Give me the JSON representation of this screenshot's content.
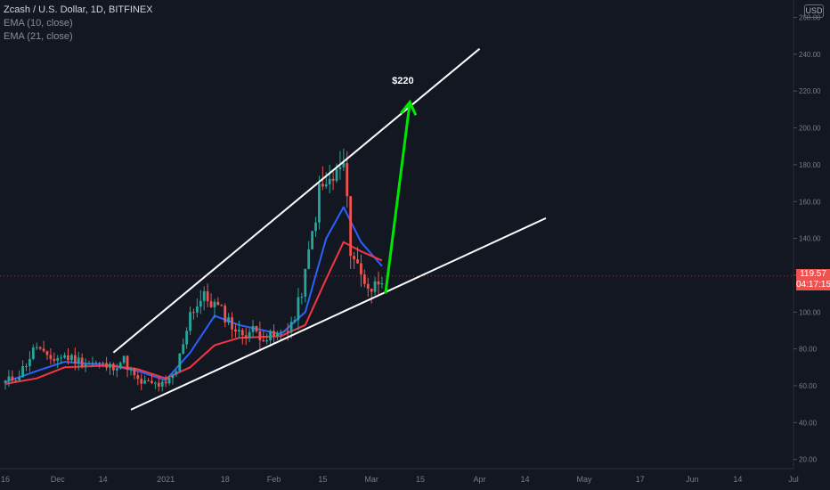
{
  "header": {
    "symbol_line": "Zcash / U.S. Dollar, 1D, BITFINEX",
    "ema_fast_label": "EMA (10, close)",
    "ema_slow_label": "EMA (21, close)",
    "currency_badge": "USD"
  },
  "last_price": {
    "price": "119.57",
    "countdown": "04:17:15"
  },
  "colors": {
    "background": "#131722",
    "up_candle": "#26a69a",
    "down_candle": "#ef5350",
    "ema_fast": "#2962ff",
    "ema_slow": "#f23645",
    "trendline": "#ffffff",
    "target_arrow": "#00e600",
    "price_tag": "#ef5350"
  },
  "chart_data": {
    "type": "candlestick",
    "title": "Zcash / U.S. Dollar, 1D, BITFINEX",
    "y_axis": {
      "ylim": [
        15,
        268
      ],
      "ticks": [
        "260.00",
        "240.00",
        "220.00",
        "200.00",
        "180.00",
        "160.00",
        "140.00",
        "120.00",
        "100.00",
        "80.00",
        "60.00",
        "40.00",
        "20.00"
      ],
      "position": "right",
      "unit": "USD"
    },
    "x_axis": {
      "xlim": [
        "2020-11-16",
        "2021-06-30"
      ],
      "ticks": [
        {
          "date": "2020-11-16",
          "label": "16"
        },
        {
          "date": "2020-12-01",
          "label": "Dec"
        },
        {
          "date": "2020-12-14",
          "label": "14"
        },
        {
          "date": "2021-01-01",
          "label": "2021"
        },
        {
          "date": "2021-01-18",
          "label": "18"
        },
        {
          "date": "2021-02-01",
          "label": "Feb"
        },
        {
          "date": "2021-02-15",
          "label": "15"
        },
        {
          "date": "2021-03-01",
          "label": "Mar"
        },
        {
          "date": "2021-03-15",
          "label": "15"
        },
        {
          "date": "2021-04-01",
          "label": "Apr"
        },
        {
          "date": "2021-04-14",
          "label": "14"
        },
        {
          "date": "2021-05-01",
          "label": "May"
        },
        {
          "date": "2021-05-17",
          "label": "17"
        },
        {
          "date": "2021-06-01",
          "label": "Jun"
        },
        {
          "date": "2021-06-14",
          "label": "14"
        },
        {
          "date": "2021-06-30",
          "label": "Jul"
        }
      ]
    },
    "grid": false,
    "closes": [
      {
        "date": "2020-11-16",
        "value": 62
      },
      {
        "date": "2020-11-20",
        "value": 66
      },
      {
        "date": "2020-11-25",
        "value": 82
      },
      {
        "date": "2020-11-28",
        "value": 74
      },
      {
        "date": "2020-12-03",
        "value": 76
      },
      {
        "date": "2020-12-08",
        "value": 73
      },
      {
        "date": "2020-12-12",
        "value": 72
      },
      {
        "date": "2020-12-16",
        "value": 70
      },
      {
        "date": "2020-12-20",
        "value": 74
      },
      {
        "date": "2020-12-24",
        "value": 62
      },
      {
        "date": "2020-12-28",
        "value": 61
      },
      {
        "date": "2021-01-01",
        "value": 60
      },
      {
        "date": "2021-01-04",
        "value": 68
      },
      {
        "date": "2021-01-08",
        "value": 100
      },
      {
        "date": "2021-01-12",
        "value": 108
      },
      {
        "date": "2021-01-15",
        "value": 104
      },
      {
        "date": "2021-01-18",
        "value": 98
      },
      {
        "date": "2021-01-22",
        "value": 88
      },
      {
        "date": "2021-01-26",
        "value": 90
      },
      {
        "date": "2021-01-30",
        "value": 86
      },
      {
        "date": "2021-02-03",
        "value": 88
      },
      {
        "date": "2021-02-07",
        "value": 96
      },
      {
        "date": "2021-02-10",
        "value": 120
      },
      {
        "date": "2021-02-14",
        "value": 165
      },
      {
        "date": "2021-02-18",
        "value": 172
      },
      {
        "date": "2021-02-21",
        "value": 180
      },
      {
        "date": "2021-02-23",
        "value": 135
      },
      {
        "date": "2021-02-26",
        "value": 120
      },
      {
        "date": "2021-03-01",
        "value": 112
      },
      {
        "date": "2021-03-04",
        "value": 120
      }
    ],
    "series": [
      {
        "name": "EMA (10, close)",
        "points": [
          {
            "date": "2020-11-16",
            "value": 62
          },
          {
            "date": "2020-11-25",
            "value": 68
          },
          {
            "date": "2020-12-03",
            "value": 73
          },
          {
            "date": "2020-12-16",
            "value": 71
          },
          {
            "date": "2020-12-24",
            "value": 68
          },
          {
            "date": "2021-01-01",
            "value": 63
          },
          {
            "date": "2021-01-08",
            "value": 78
          },
          {
            "date": "2021-01-15",
            "value": 98
          },
          {
            "date": "2021-01-22",
            "value": 93
          },
          {
            "date": "2021-02-03",
            "value": 88
          },
          {
            "date": "2021-02-10",
            "value": 100
          },
          {
            "date": "2021-02-16",
            "value": 140
          },
          {
            "date": "2021-02-21",
            "value": 157
          },
          {
            "date": "2021-02-26",
            "value": 138
          },
          {
            "date": "2021-03-04",
            "value": 125
          }
        ]
      },
      {
        "name": "EMA (21, close)",
        "points": [
          {
            "date": "2020-11-16",
            "value": 61
          },
          {
            "date": "2020-11-25",
            "value": 64
          },
          {
            "date": "2020-12-03",
            "value": 70
          },
          {
            "date": "2020-12-16",
            "value": 71
          },
          {
            "date": "2020-12-24",
            "value": 69
          },
          {
            "date": "2021-01-01",
            "value": 64
          },
          {
            "date": "2021-01-08",
            "value": 70
          },
          {
            "date": "2021-01-15",
            "value": 82
          },
          {
            "date": "2021-01-22",
            "value": 86
          },
          {
            "date": "2021-02-03",
            "value": 87
          },
          {
            "date": "2021-02-10",
            "value": 93
          },
          {
            "date": "2021-02-16",
            "value": 118
          },
          {
            "date": "2021-02-21",
            "value": 138
          },
          {
            "date": "2021-02-26",
            "value": 133
          },
          {
            "date": "2021-03-04",
            "value": 128
          }
        ]
      }
    ],
    "annotations": [
      {
        "type": "trendline",
        "name": "upper-trendline",
        "from": {
          "date": "2020-12-17",
          "value": 78
        },
        "to": {
          "date": "2021-04-01",
          "value": 243
        }
      },
      {
        "type": "trendline",
        "name": "lower-trendline",
        "from": {
          "date": "2020-12-22",
          "value": 47
        },
        "to": {
          "date": "2021-04-20",
          "value": 151
        }
      },
      {
        "type": "arrow",
        "name": "target-arrow",
        "from": {
          "date": "2021-03-05",
          "value": 110
        },
        "to": {
          "date": "2021-03-12",
          "value": 214
        }
      },
      {
        "type": "label",
        "name": "target-label",
        "text": "$220",
        "at": {
          "date": "2021-03-10",
          "value": 226
        }
      }
    ]
  }
}
